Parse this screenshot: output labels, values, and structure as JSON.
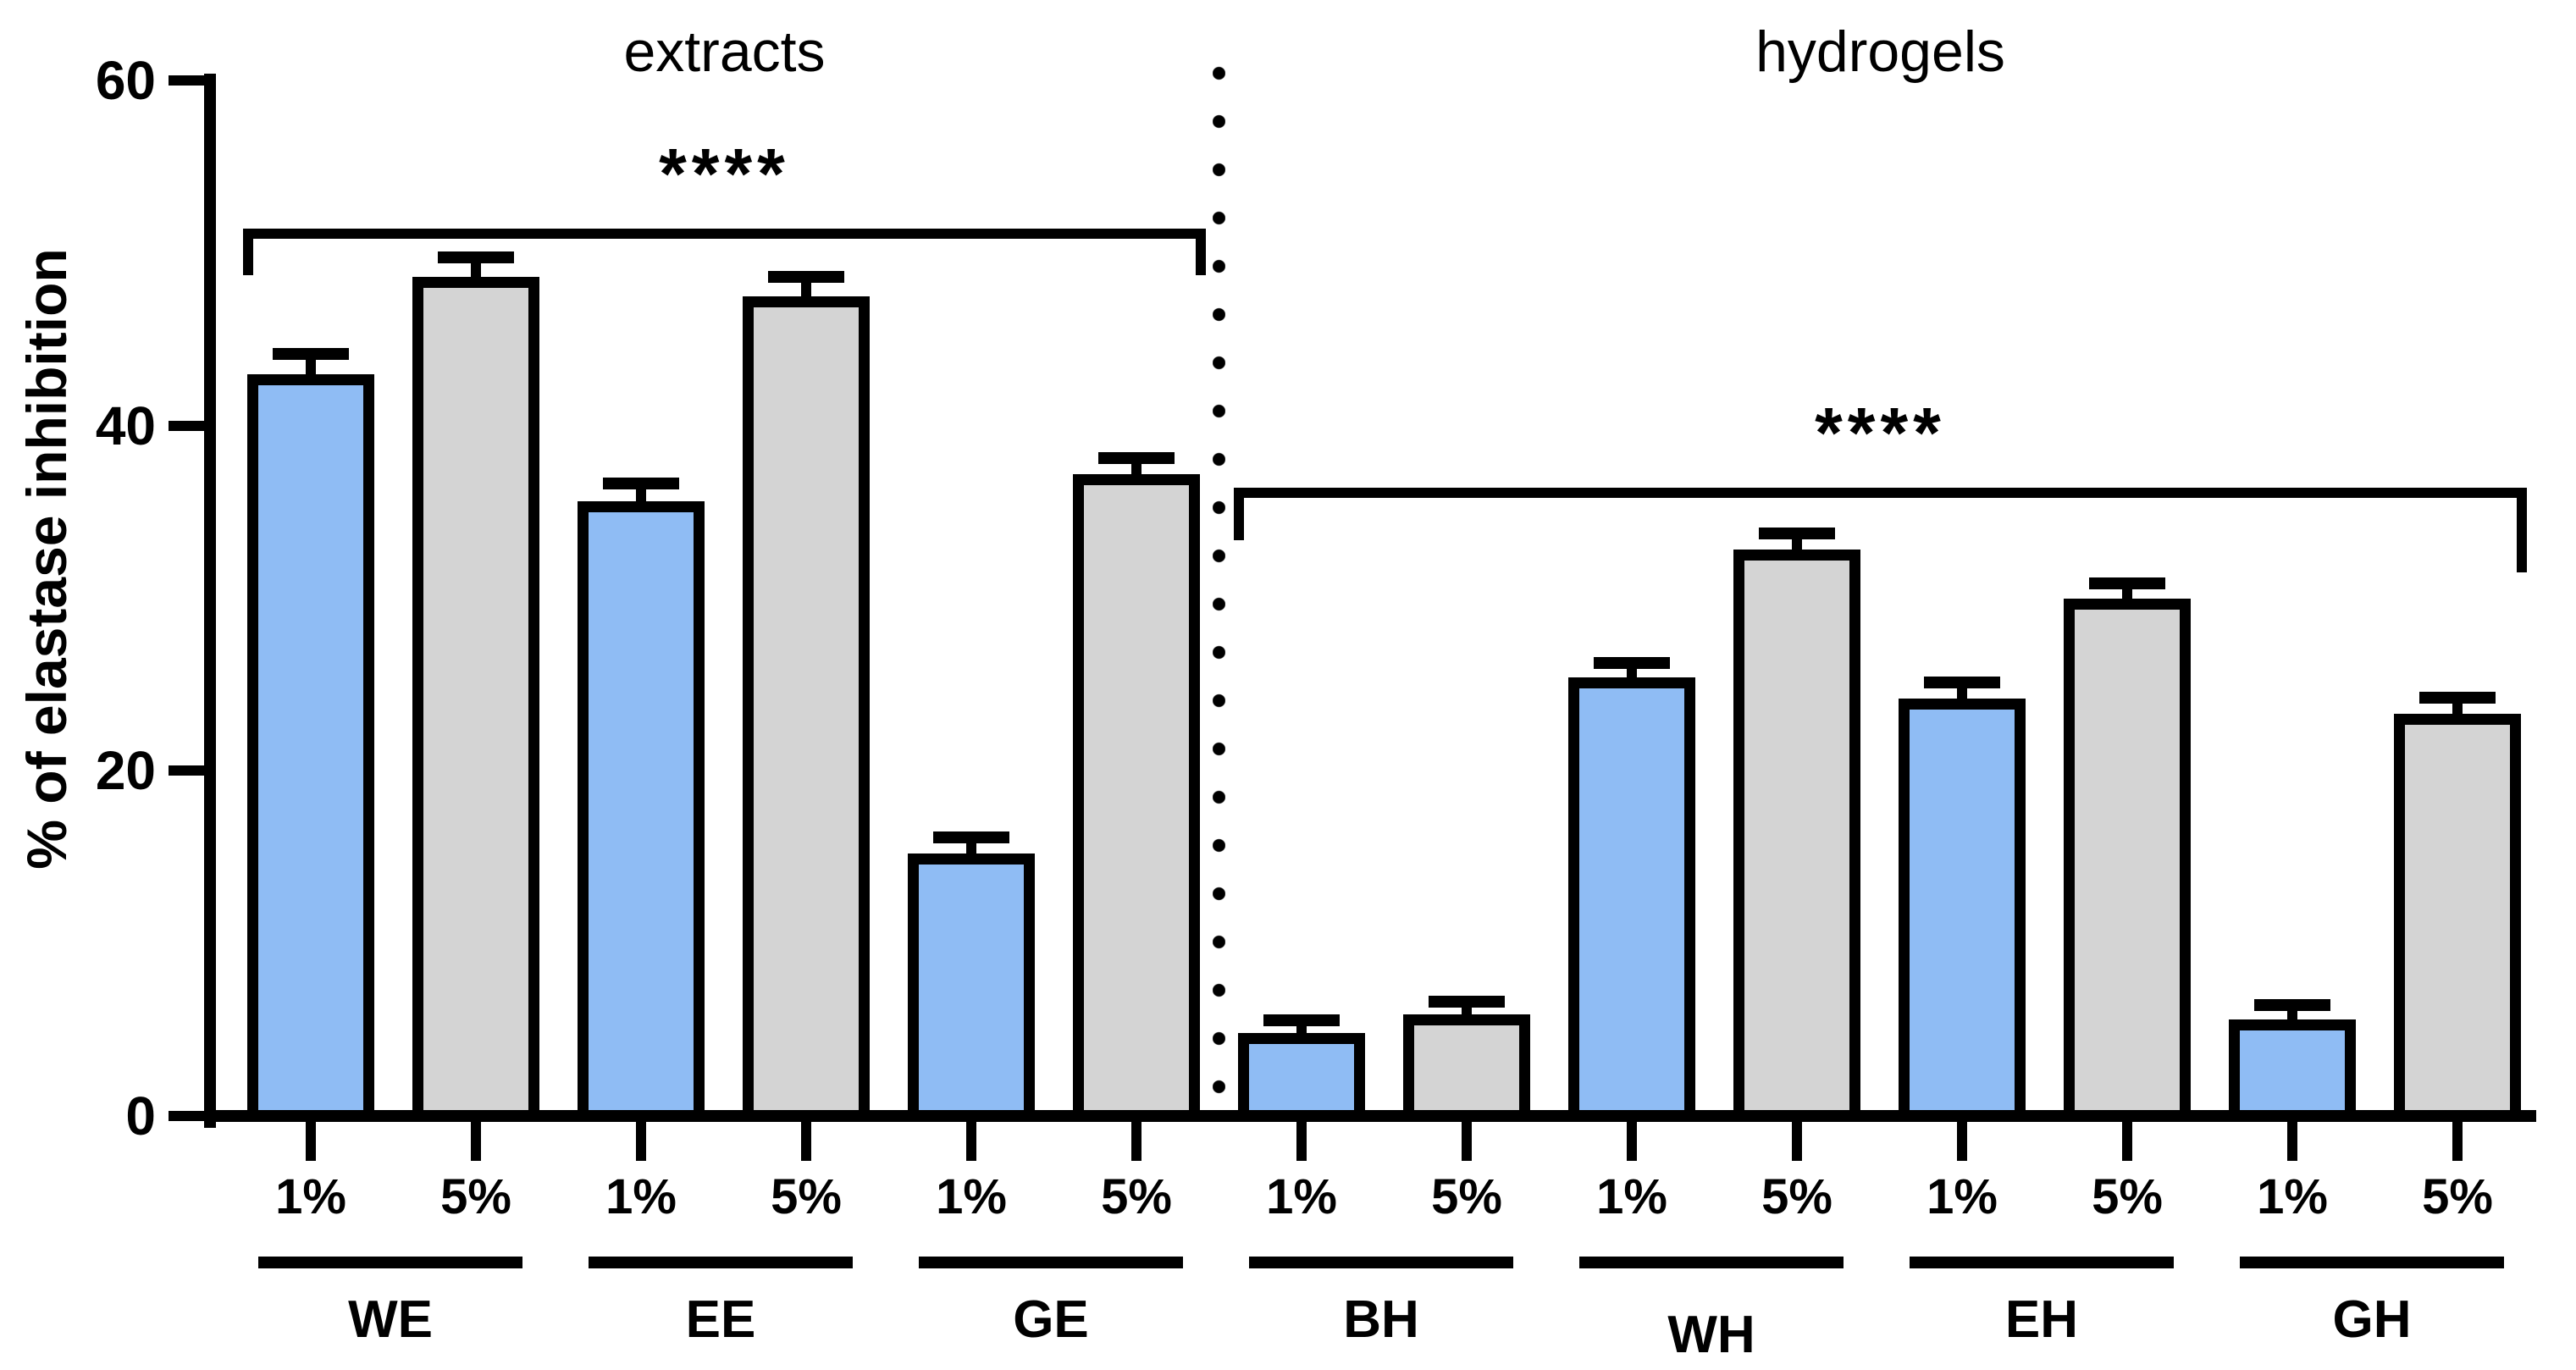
{
  "chart_data": {
    "type": "bar",
    "title": "",
    "ylabel": "% of elastase inhibition",
    "ylim": [
      0,
      60
    ],
    "yticks": [
      "0",
      "20",
      "40",
      "60"
    ],
    "grid": false,
    "legend": "none",
    "series_note": "1% concentration bars are blue, 5% concentration bars are gray; whiskers are +SD error bars",
    "colors": {
      "pct1_fill": "#8FBCF4",
      "pct5_fill": "#D4D4D4",
      "outline": "#000000",
      "background": "#FFFFFF"
    },
    "divider": {
      "style": "dotted",
      "between": [
        "GE",
        "BH"
      ]
    },
    "sections": [
      {
        "label": "extracts",
        "significance": {
          "label": "****",
          "y_value": 51.4
        },
        "groups": [
          {
            "label": "WE",
            "bars": [
              {
                "label": "1%",
                "value": 43.0,
                "error": 0.7
              },
              {
                "label": "5%",
                "value": 48.6,
                "error": 0.7
              }
            ]
          },
          {
            "label": "EE",
            "bars": [
              {
                "label": "1%",
                "value": 35.6,
                "error": 0.6
              },
              {
                "label": "5%",
                "value": 47.5,
                "error": 0.7
              }
            ]
          },
          {
            "label": "GE",
            "bars": [
              {
                "label": "1%",
                "value": 15.2,
                "error": 0.5
              },
              {
                "label": "5%",
                "value": 37.2,
                "error": 0.5
              }
            ]
          }
        ]
      },
      {
        "label": "hydrogels",
        "significance": {
          "label": "****",
          "y_value": 36.4
        },
        "groups": [
          {
            "label": "BH",
            "bars": [
              {
                "label": "1%",
                "value": 4.8,
                "error": 0.3
              },
              {
                "label": "5%",
                "value": 5.9,
                "error": 0.3
              }
            ]
          },
          {
            "label": "WH",
            "dy": 18,
            "bars": [
              {
                "label": "1%",
                "value": 25.4,
                "error": 0.4
              },
              {
                "label": "5%",
                "value": 32.8,
                "error": 0.5
              }
            ]
          },
          {
            "label": "EH",
            "bars": [
              {
                "label": "1%",
                "value": 24.2,
                "error": 0.5
              },
              {
                "label": "5%",
                "value": 30.0,
                "error": 0.4
              }
            ]
          },
          {
            "label": "GH",
            "bars": [
              {
                "label": "1%",
                "value": 5.6,
                "error": 0.4
              },
              {
                "label": "5%",
                "value": 23.3,
                "error": 0.5
              }
            ]
          }
        ]
      }
    ]
  }
}
